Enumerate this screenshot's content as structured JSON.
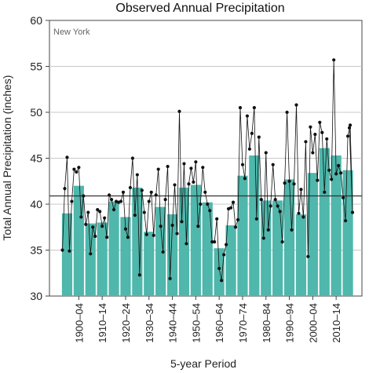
{
  "chart_data": {
    "type": "bar",
    "title": "Observed Annual Precipitation",
    "region_label": "New York",
    "xlabel": "5-year Period",
    "ylabel": "Total Annual Precipitation (inches)",
    "ylim": [
      30,
      60
    ],
    "yticks": [
      30,
      35,
      40,
      45,
      50,
      55,
      60
    ],
    "xticks": [
      "1900–04",
      "1910–14",
      "1920–24",
      "1930–34",
      "1940–44",
      "1950–54",
      "1960–64",
      "1970–74",
      "1980–84",
      "1990–94",
      "2000–04",
      "2010–14"
    ],
    "grid": true,
    "bar_color": "#4fb7ab",
    "line_color": "#111111",
    "reference_line": 40.9,
    "bars": {
      "start_years": [
        1895,
        1900,
        1905,
        1910,
        1915,
        1920,
        1925,
        1930,
        1935,
        1940,
        1945,
        1950,
        1955,
        1960,
        1965,
        1970,
        1975,
        1980,
        1985,
        1990,
        1995,
        2000,
        2005,
        2010,
        2015
      ],
      "values": [
        39.0,
        42.0,
        37.9,
        38.0,
        40.3,
        38.6,
        41.8,
        37.0,
        39.7,
        38.9,
        41.8,
        42.1,
        40.2,
        35.2,
        37.7,
        43.1,
        45.3,
        40.4,
        40.4,
        42.7,
        38.9,
        43.4,
        46.1,
        45.3,
        43.7
      ]
    },
    "series": [
      {
        "type": "line",
        "x": [
          1895,
          1896,
          1897,
          1898,
          1899,
          1900,
          1901,
          1902,
          1903,
          1904,
          1905,
          1906,
          1907,
          1908,
          1909,
          1910,
          1911,
          1912,
          1913,
          1914,
          1915,
          1916,
          1917,
          1918,
          1919,
          1920,
          1921,
          1922,
          1923,
          1924,
          1925,
          1926,
          1927,
          1928,
          1929,
          1930,
          1931,
          1932,
          1933,
          1934,
          1935,
          1936,
          1937,
          1938,
          1939,
          1940,
          1941,
          1942,
          1943,
          1944,
          1945,
          1946,
          1947,
          1948,
          1949,
          1950,
          1951,
          1952,
          1953,
          1954,
          1955,
          1956,
          1957,
          1958,
          1959,
          1960,
          1961,
          1962,
          1963,
          1964,
          1965,
          1966,
          1967,
          1968,
          1969,
          1970,
          1971,
          1972,
          1973,
          1974,
          1975,
          1976,
          1977,
          1978,
          1979,
          1980,
          1981,
          1982,
          1983,
          1984,
          1985,
          1986,
          1987,
          1988,
          1989,
          1990,
          1991,
          1992,
          1993,
          1994,
          1995,
          1996,
          1997,
          1998,
          1999,
          2000,
          2001,
          2002,
          2003,
          2004,
          2005,
          2006,
          2007,
          2008,
          2009,
          2010,
          2011,
          2012,
          2013,
          2014,
          2015,
          2016,
          2017,
          2018,
          2019
        ],
        "y": [
          35.0,
          41.7,
          45.1,
          34.9,
          40.3,
          43.8,
          43.5,
          44.0,
          38.6,
          40.9,
          37.8,
          39.1,
          34.6,
          37.5,
          36.5,
          39.4,
          39.2,
          37.6,
          38.5,
          36.4,
          41.0,
          40.5,
          39.4,
          40.3,
          40.2,
          40.3,
          41.3,
          37.3,
          36.4,
          41.8,
          45.0,
          38.8,
          43.2,
          32.3,
          41.5,
          39.1,
          36.7,
          40.3,
          41.3,
          36.6,
          41.0,
          43.8,
          37.6,
          34.8,
          40.5,
          44.1,
          31.9,
          37.7,
          42.1,
          36.8,
          50.1,
          38.1,
          44.4,
          35.7,
          42.2,
          43.9,
          42.4,
          44.6,
          37.6,
          40.0,
          44.0,
          41.3,
          40.0,
          39.3,
          35.9,
          35.9,
          38.4,
          33.0,
          31.7,
          34.5,
          35.6,
          39.5,
          39.6,
          40.2,
          37.5,
          38.3,
          50.5,
          44.3,
          42.8,
          49.6,
          46.0,
          47.7,
          50.5,
          38.4,
          47.3,
          40.5,
          36.3,
          45.6,
          37.2,
          39.8,
          44.3,
          40.5,
          39.8,
          39.2,
          35.9,
          42.3,
          50.0,
          42.5,
          37.2,
          42.2,
          50.8,
          39.0,
          41.6,
          38.6,
          46.8,
          34.3,
          48.4,
          45.6,
          47.6,
          42.6,
          48.9,
          47.8,
          41.3,
          47.1,
          43.7,
          42.7,
          55.7,
          43.3,
          44.2,
          43.4,
          40.7,
          38.2,
          47.4,
          48.6,
          39.1
        ],
        "extra_end_point": [
          2019,
          48.3
        ]
      }
    ]
  }
}
